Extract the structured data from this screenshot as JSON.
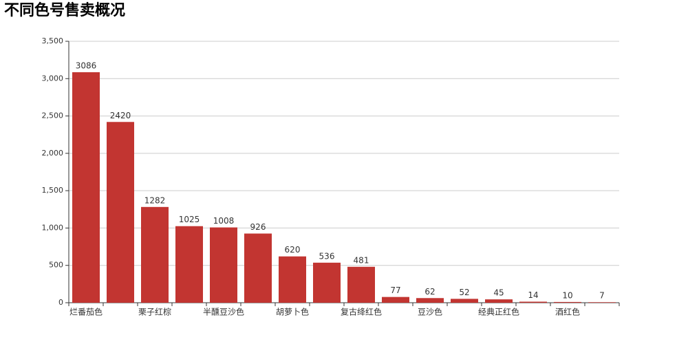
{
  "chart_data": {
    "type": "bar",
    "title": "不同色号售卖概况",
    "categories": [
      "烂番茄色",
      null,
      "栗子红棕",
      null,
      "半醺豆沙色",
      null,
      "胡萝卜色",
      null,
      "复古绛红色",
      null,
      "豆沙色",
      null,
      "经典正红色",
      null,
      "酒红色",
      null
    ],
    "values": [
      3086,
      2420,
      1282,
      1025,
      1008,
      926,
      620,
      536,
      481,
      77,
      62,
      52,
      45,
      14,
      10,
      7
    ],
    "color": "#c23531",
    "ylim": [
      0,
      3500
    ],
    "yticks": [
      0,
      500,
      {
        "value": 1000,
        "label": "1,000"
      },
      {
        "value": 1500,
        "label": "1,500"
      },
      {
        "value": 2000,
        "label": "2,000"
      },
      {
        "value": 2500,
        "label": "2,500"
      },
      {
        "value": 3000,
        "label": "3,000"
      },
      {
        "value": 3500,
        "label": "3,500"
      }
    ],
    "grid": true
  }
}
